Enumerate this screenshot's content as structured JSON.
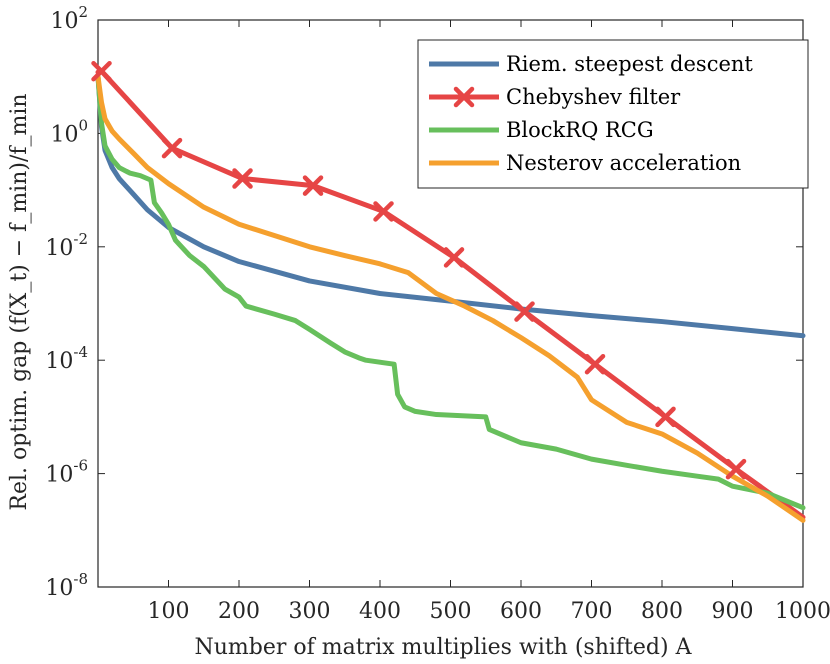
{
  "chart_data": {
    "type": "line",
    "title": "",
    "xlabel": "Number of matrix multiplies with (shifted) A",
    "ylabel": "Rel. optim. gap (f(X_t) − f_min)/f_min",
    "x_log": false,
    "y_log": true,
    "xlim": [
      0,
      1000
    ],
    "ylim": [
      1e-08,
      100
    ],
    "x_ticks": [
      100,
      200,
      300,
      400,
      500,
      600,
      700,
      800,
      900,
      1000
    ],
    "y_ticks": [
      {
        "base": "10",
        "exp": "2"
      },
      {
        "base": "10",
        "exp": "0"
      },
      {
        "base": "10",
        "exp": "-2"
      },
      {
        "base": "10",
        "exp": "-4"
      },
      {
        "base": "10",
        "exp": "-6"
      },
      {
        "base": "10",
        "exp": "-8"
      }
    ],
    "legend_position": "top-right",
    "series": [
      {
        "name": "Riem. steepest descent",
        "color": "#4e79a7",
        "marker": "none",
        "x": [
          0,
          5,
          10,
          20,
          30,
          50,
          70,
          100,
          150,
          200,
          300,
          400,
          500,
          600,
          700,
          800,
          900,
          1000
        ],
        "y": [
          10,
          1.3,
          0.5,
          0.25,
          0.16,
          0.085,
          0.045,
          0.022,
          0.01,
          0.0055,
          0.0025,
          0.0015,
          0.0011,
          0.0008,
          0.00061,
          0.00048,
          0.00036,
          0.00027
        ]
      },
      {
        "name": "Chebyshev filter",
        "color": "#e64545",
        "marker": "x",
        "x": [
          0,
          5,
          105,
          205,
          305,
          405,
          505,
          605,
          705,
          805,
          905,
          1000
        ],
        "y": [
          12,
          12.5,
          0.55,
          0.16,
          0.12,
          0.042,
          0.0065,
          0.00072,
          8.5e-05,
          1e-05,
          1.2e-06,
          1.7e-07
        ]
      },
      {
        "name": "BlockRQ RCG",
        "color": "#67bf5c",
        "marker": "none",
        "x": [
          0,
          5,
          10,
          20,
          30,
          45,
          60,
          75,
          80,
          90,
          100,
          110,
          130,
          150,
          180,
          200,
          210,
          250,
          280,
          300,
          330,
          350,
          370,
          380,
          420,
          425,
          435,
          450,
          480,
          550,
          555,
          600,
          650,
          700,
          750,
          800,
          850,
          880,
          900,
          950,
          1000
        ],
        "y": [
          10,
          1.5,
          0.6,
          0.35,
          0.25,
          0.2,
          0.18,
          0.15,
          0.06,
          0.04,
          0.025,
          0.013,
          0.007,
          0.0045,
          0.0018,
          0.0013,
          0.0009,
          0.00065,
          0.0005,
          0.00035,
          0.0002,
          0.00014,
          0.00011,
          0.0001,
          8.5e-05,
          2.5e-05,
          1.5e-05,
          1.25e-05,
          1.1e-05,
          1e-05,
          6e-06,
          3.5e-06,
          2.7e-06,
          1.8e-06,
          1.4e-06,
          1.1e-06,
          9e-07,
          8e-07,
          6e-07,
          4.5e-07,
          2.5e-07
        ]
      },
      {
        "name": "Nesterov acceleration",
        "color": "#f5a02e",
        "marker": "none",
        "x": [
          0,
          5,
          10,
          20,
          30,
          50,
          70,
          100,
          150,
          200,
          300,
          350,
          400,
          440,
          480,
          520,
          560,
          600,
          640,
          680,
          700,
          750,
          800,
          850,
          900,
          950,
          1000
        ],
        "y": [
          10,
          3.5,
          1.8,
          1.1,
          0.8,
          0.45,
          0.25,
          0.13,
          0.05,
          0.025,
          0.01,
          0.007,
          0.005,
          0.0035,
          0.0015,
          0.0009,
          0.0005,
          0.00025,
          0.00012,
          5e-05,
          2e-05,
          8e-06,
          5e-06,
          2.3e-06,
          9e-07,
          4e-07,
          1.5e-07
        ]
      }
    ]
  }
}
